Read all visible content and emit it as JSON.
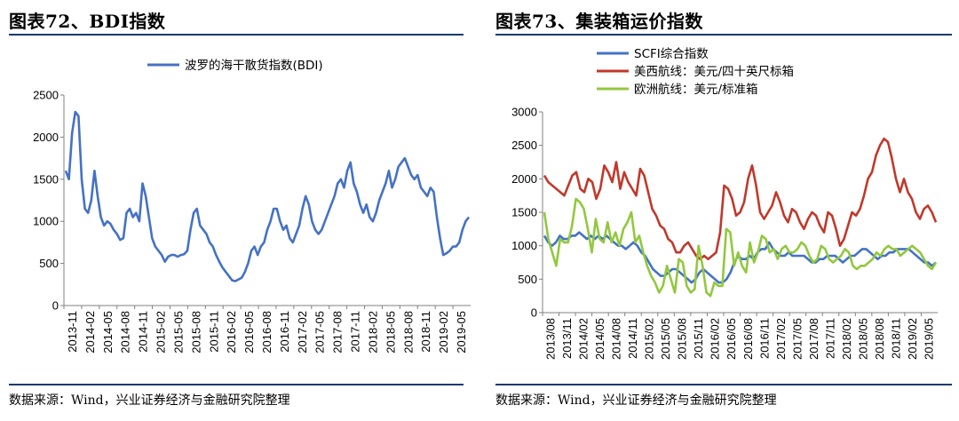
{
  "left": {
    "title": "图表72、BDI指数",
    "source": "数据来源：Wind，兴业证券经济与金融研究院整理"
  },
  "right": {
    "title": "图表73、集装箱运价指数",
    "source": "数据来源：Wind，兴业证券经济与金融研究院整理"
  },
  "colors": {
    "blue": "#4472c4",
    "red": "#c0392b",
    "green": "#92c83e",
    "rule": "#1a3a6e",
    "axis": "#808080"
  },
  "chart_data": [
    {
      "type": "line",
      "title": "",
      "xlabel": "",
      "ylabel": "",
      "ylim": [
        0,
        2500
      ],
      "yticks": [
        0,
        500,
        1000,
        1500,
        2000,
        2500
      ],
      "xticks": [
        "2013-11",
        "2014-02",
        "2014-05",
        "2014-08",
        "2014-11",
        "2015-02",
        "2015-05",
        "2015-08",
        "2015-11",
        "2016-02",
        "2016-05",
        "2016-08",
        "2016-11",
        "2017-02",
        "2017-05",
        "2017-08",
        "2017-11",
        "2018-02",
        "2018-05",
        "2018-08",
        "2018-11",
        "2019-02",
        "2019-05"
      ],
      "legend": "top-center",
      "grid": false,
      "series": [
        {
          "name": "波罗的海干散货指数(BDI)",
          "color": "#4472c4",
          "values": [
            1600,
            1500,
            2050,
            2300,
            2250,
            1500,
            1150,
            1100,
            1250,
            1600,
            1300,
            1050,
            950,
            1000,
            970,
            900,
            850,
            780,
            800,
            1100,
            1150,
            1050,
            1100,
            1000,
            1450,
            1300,
            1050,
            800,
            700,
            650,
            600,
            520,
            580,
            600,
            600,
            580,
            600,
            610,
            650,
            900,
            1100,
            1150,
            950,
            900,
            850,
            750,
            700,
            600,
            520,
            450,
            400,
            350,
            300,
            290,
            310,
            330,
            400,
            500,
            650,
            700,
            600,
            700,
            750,
            900,
            1000,
            1150,
            1150,
            1000,
            900,
            950,
            800,
            750,
            850,
            950,
            1150,
            1300,
            1200,
            1000,
            900,
            850,
            900,
            1000,
            1100,
            1200,
            1300,
            1450,
            1500,
            1400,
            1600,
            1700,
            1450,
            1350,
            1200,
            1100,
            1200,
            1050,
            1000,
            1100,
            1250,
            1350,
            1450,
            1600,
            1400,
            1500,
            1650,
            1700,
            1750,
            1650,
            1550,
            1500,
            1550,
            1400,
            1350,
            1300,
            1400,
            1350,
            1050,
            800,
            600,
            620,
            650,
            700,
            700,
            750,
            900,
            1000,
            1050
          ]
        }
      ]
    },
    {
      "type": "line",
      "title": "",
      "xlabel": "",
      "ylabel": "",
      "ylim": [
        0,
        3000
      ],
      "yticks": [
        0,
        500,
        1000,
        1500,
        2000,
        2500,
        3000
      ],
      "xticks": [
        "2013/08",
        "2013/11",
        "2014/02",
        "2014/05",
        "2014/08",
        "2014/11",
        "2015/02",
        "2015/05",
        "2015/08",
        "2015/11",
        "2016/02",
        "2016/05",
        "2016/08",
        "2016/11",
        "2017/02",
        "2017/05",
        "2017/08",
        "2017/11",
        "2018/02",
        "2018/05",
        "2018/08",
        "2018/11",
        "2019/02",
        "2019/05"
      ],
      "legend": "top-left",
      "grid": false,
      "series": [
        {
          "name": "SCFI综合指数",
          "color": "#4472c4",
          "values": [
            1150,
            1050,
            1000,
            1050,
            1150,
            1100,
            1100,
            1150,
            1150,
            1200,
            1150,
            1100,
            1150,
            1100,
            1150,
            1100,
            1150,
            1100,
            1050,
            1000,
            1000,
            950,
            1000,
            1050,
            1000,
            900,
            850,
            750,
            650,
            600,
            550,
            550,
            600,
            650,
            650,
            600,
            550,
            500,
            450,
            500,
            600,
            650,
            600,
            550,
            500,
            450,
            450,
            500,
            600,
            750,
            850,
            800,
            800,
            850,
            800,
            900,
            950,
            950,
            1050,
            950,
            900,
            850,
            850,
            900,
            850,
            850,
            850,
            850,
            800,
            750,
            750,
            800,
            800,
            850,
            850,
            850,
            800,
            750,
            800,
            850,
            850,
            900,
            950,
            950,
            900,
            850,
            800,
            850,
            850,
            900,
            900,
            950,
            950,
            950,
            950,
            900,
            850,
            800,
            750,
            750,
            700,
            750
          ]
        },
        {
          "name": "美西航线：美元/四十英尺标箱",
          "color": "#c0392b",
          "values": [
            2050,
            1950,
            1900,
            1850,
            1800,
            1750,
            1900,
            2050,
            2100,
            1850,
            1800,
            2000,
            1950,
            1700,
            1850,
            2200,
            2100,
            1950,
            2250,
            1850,
            2100,
            1950,
            1850,
            1750,
            2150,
            2050,
            1800,
            1550,
            1450,
            1300,
            1250,
            1100,
            1050,
            900,
            900,
            1000,
            1050,
            950,
            850,
            800,
            850,
            800,
            850,
            900,
            1200,
            1900,
            1850,
            1700,
            1450,
            1500,
            1650,
            2000,
            2200,
            1900,
            1500,
            1400,
            1500,
            1600,
            1800,
            1650,
            1450,
            1350,
            1550,
            1500,
            1350,
            1250,
            1400,
            1500,
            1450,
            1300,
            1200,
            1500,
            1450,
            1250,
            1000,
            1100,
            1300,
            1500,
            1450,
            1550,
            1750,
            2000,
            2100,
            2350,
            2500,
            2600,
            2550,
            2300,
            2000,
            1800,
            2000,
            1800,
            1700,
            1500,
            1400,
            1550,
            1600,
            1500,
            1350
          ]
        },
        {
          "name": "欧洲航线：美元/标准箱",
          "color": "#92c83e",
          "values": [
            1500,
            1100,
            900,
            700,
            1100,
            1050,
            1050,
            1300,
            1700,
            1650,
            1550,
            1250,
            900,
            1400,
            1100,
            1050,
            1350,
            1050,
            1200,
            1000,
            1250,
            1350,
            1500,
            1050,
            1150,
            900,
            700,
            550,
            450,
            300,
            400,
            700,
            500,
            300,
            800,
            750,
            400,
            300,
            350,
            1000,
            700,
            300,
            250,
            450,
            400,
            400,
            1250,
            1200,
            700,
            900,
            700,
            600,
            1050,
            750,
            900,
            1150,
            1100,
            900,
            950,
            800,
            950,
            1000,
            900,
            900,
            950,
            1050,
            1000,
            850,
            750,
            800,
            1000,
            950,
            800,
            750,
            800,
            850,
            950,
            900,
            700,
            650,
            700,
            700,
            750,
            800,
            900,
            850,
            950,
            1000,
            950,
            950,
            850,
            900,
            950,
            1000,
            950,
            900,
            800,
            700,
            650,
            750
          ]
        }
      ]
    }
  ]
}
